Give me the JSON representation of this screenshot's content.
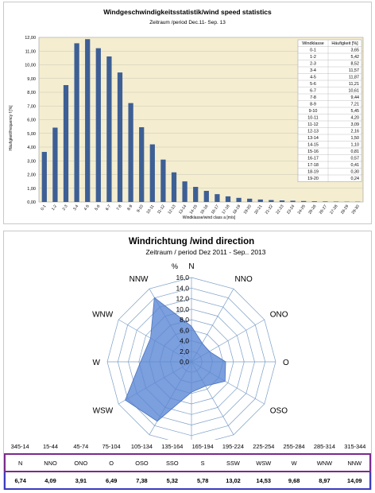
{
  "chart_data": [
    {
      "type": "bar",
      "title": "Windgeschwindigkeitsstatistik/wind speed statistics",
      "subtitle": "Zeitraum /period Dec.11- Sep. 13",
      "xlabel": "Windklasse/wind class a [m/s]",
      "ylabel": "Häufigkeit/frequency f [%]",
      "ylim": [
        0,
        12
      ],
      "y_ticks": [
        "0,00",
        "1,00",
        "2,00",
        "3,00",
        "4,00",
        "5,00",
        "6,00",
        "7,00",
        "8,00",
        "9,00",
        "10,00",
        "11,00",
        "12,00"
      ],
      "grid": true,
      "categories": [
        "0-1",
        "1-2",
        "2-3",
        "3-4",
        "4-5",
        "5-6",
        "6-7",
        "7-8",
        "8-9",
        "9-10",
        "10-11",
        "11-12",
        "12-13",
        "13-14",
        "14-15",
        "15-16",
        "16-17",
        "17-18",
        "18-19",
        "19-20",
        "20-21",
        "21-22",
        "22-23",
        "23-24",
        "24-25",
        "25-26",
        "26-27",
        "27-28",
        "28-29",
        "29-30"
      ],
      "values": [
        3.65,
        5.42,
        8.52,
        11.57,
        11.87,
        11.21,
        10.61,
        9.44,
        7.21,
        5.45,
        4.2,
        3.09,
        2.16,
        1.5,
        1.1,
        0.81,
        0.57,
        0.41,
        0.3,
        0.24,
        0.18,
        0.14,
        0.11,
        0.09,
        0.07,
        0.05,
        0.04,
        0.03,
        0.02,
        0.02
      ],
      "colors": {
        "bar": "#3d5f95",
        "plot_bg": "#f4edd0",
        "grid": "#c8c8b4"
      },
      "legend_table": {
        "header": [
          "Windklasse",
          "Häufigkeit [%]"
        ],
        "rows": [
          [
            "0-1",
            "3,65"
          ],
          [
            "1-2",
            "5,42"
          ],
          [
            "2-3",
            "8,52"
          ],
          [
            "3-4",
            "11,57"
          ],
          [
            "4-5",
            "11,87"
          ],
          [
            "5-6",
            "11,21"
          ],
          [
            "6-7",
            "10,61"
          ],
          [
            "7-8",
            "9,44"
          ],
          [
            "8-9",
            "7,21"
          ],
          [
            "9-10",
            "5,45"
          ],
          [
            "10-11",
            "4,20"
          ],
          [
            "11-12",
            "3,09"
          ],
          [
            "12-13",
            "2,16"
          ],
          [
            "13-14",
            "1,50"
          ],
          [
            "14-15",
            "1,10"
          ],
          [
            "15-16",
            "0,81"
          ],
          [
            "16-17",
            "0,57"
          ],
          [
            "17-18",
            "0,41"
          ],
          [
            "18-19",
            "0,30"
          ],
          [
            "19-20",
            "0,24"
          ]
        ]
      }
    },
    {
      "type": "radar",
      "title": "Windrichtung /wind direction",
      "subtitle": "Zeitraum / period Dez 2011 - Sep.. 2013",
      "unit_label": "%",
      "rlim": [
        0,
        16
      ],
      "r_ticks": [
        "0,0",
        "2,0",
        "4,0",
        "6,0",
        "8,0",
        "10,0",
        "12,0",
        "14,0",
        "16,0"
      ],
      "directions": [
        "N",
        "NNO",
        "ONO",
        "O",
        "OSO",
        "SSO",
        "S",
        "SSW",
        "WSW",
        "W",
        "WNW",
        "NNW"
      ],
      "values": [
        6.74,
        4.09,
        3.91,
        6.49,
        7.38,
        5.32,
        5.78,
        13.02,
        14.53,
        9.68,
        8.97,
        14.09
      ],
      "colors": {
        "fill": "#5b87d4",
        "grid": "#7b9fc8",
        "text": "#000000"
      },
      "table": {
        "ranges": [
          "345-14",
          "15-44",
          "45-74",
          "75-104",
          "105-134",
          "135-164",
          "165-194",
          "195-224",
          "225-254",
          "255-284",
          "285-314",
          "315-344"
        ],
        "directions": [
          "N",
          "NNO",
          "ONO",
          "O",
          "OSO",
          "SSO",
          "S",
          "SSW",
          "WSW",
          "W",
          "WNW",
          "NNW"
        ],
        "percent": [
          "6,74",
          "4,09",
          "3,91",
          "6,49",
          "7,38",
          "5,32",
          "5,78",
          "13,02",
          "14,53",
          "9,68",
          "8,97",
          "14,09"
        ]
      }
    }
  ]
}
